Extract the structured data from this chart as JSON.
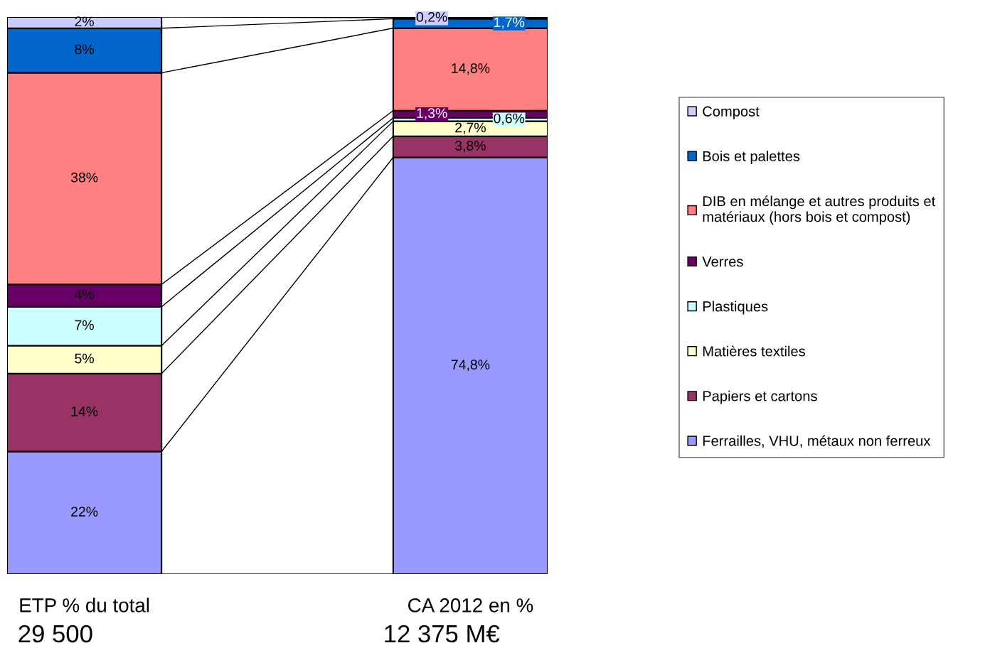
{
  "chart_data": {
    "type": "bar",
    "stacked": true,
    "categories": [
      "ETP % du total",
      "CA 2012 en %"
    ],
    "series": [
      {
        "name": "Ferrailles, VHU, métaux non ferreux",
        "color": "#9999ff",
        "values": [
          22,
          74.8
        ],
        "value_labels": [
          "22%",
          "74,8%"
        ]
      },
      {
        "name": "Papiers et cartons",
        "color": "#993366",
        "values": [
          14,
          3.8
        ],
        "value_labels": [
          "14%",
          "3,8%"
        ]
      },
      {
        "name": "Matières textiles",
        "color": "#ffffcc",
        "values": [
          5,
          2.7
        ],
        "value_labels": [
          "5%",
          "2,7%"
        ]
      },
      {
        "name": "Plastiques",
        "color": "#ccffff",
        "values": [
          7,
          0.6
        ],
        "value_labels": [
          "7%",
          "0,6%"
        ]
      },
      {
        "name": "Verres",
        "color": "#660066",
        "values": [
          4,
          1.3
        ],
        "value_labels": [
          "4%",
          "1,3%"
        ]
      },
      {
        "name": "DIB en mélange et autres produits et\nmatériaux (hors bois et compost)",
        "color": "#ff8080",
        "values": [
          38,
          14.8
        ],
        "value_labels": [
          "38%",
          "14,8%"
        ]
      },
      {
        "name": "Bois et palettes",
        "color": "#0066cc",
        "values": [
          8,
          1.7
        ],
        "value_labels": [
          "8%",
          "1,7%"
        ]
      },
      {
        "name": "Compost",
        "color": "#ccccff",
        "values": [
          2,
          0.2
        ],
        "value_labels": [
          "2%",
          "0,2%"
        ]
      }
    ],
    "annotations": [
      "29 500",
      "12 375 M€"
    ],
    "legend": "right"
  }
}
